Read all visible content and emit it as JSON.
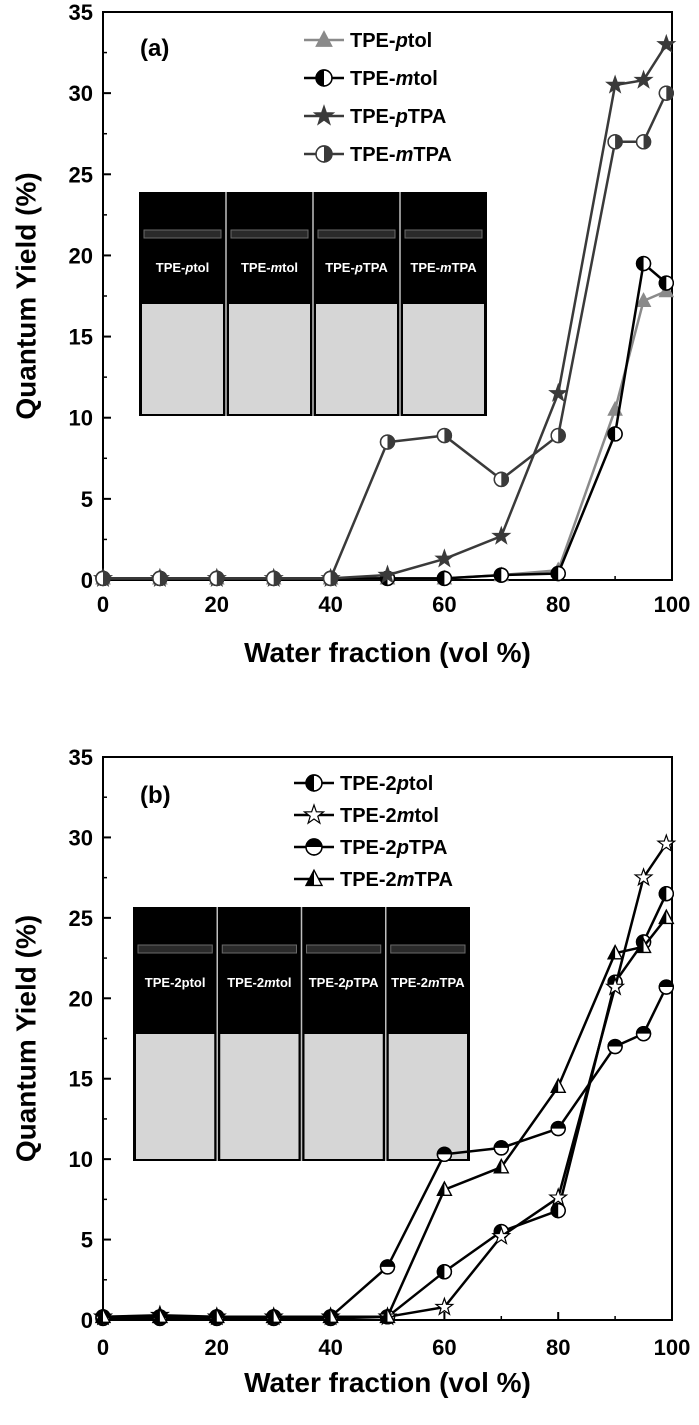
{
  "chart_data": [
    {
      "type": "line",
      "panel_label": "(a)",
      "xlabel": "Water fraction (vol %)",
      "ylabel": "Quantum Yield (%)",
      "xlim": [
        0,
        100
      ],
      "ylim": [
        0,
        35
      ],
      "xticks": [
        "0",
        "20",
        "40",
        "60",
        "80",
        "100"
      ],
      "yticks": [
        "0",
        "5",
        "10",
        "15",
        "20",
        "25",
        "30",
        "35"
      ],
      "legend_position": "top-right",
      "series": [
        {
          "name": "TPE-ptol",
          "name_parts": [
            "TPE-",
            "p",
            "tol"
          ],
          "color": "#8a8a8a",
          "marker": "triangle-up",
          "x": [
            0,
            10,
            20,
            30,
            40,
            50,
            60,
            70,
            80,
            90,
            95,
            99
          ],
          "y": [
            0.1,
            0.1,
            0.1,
            0.1,
            0.1,
            0.1,
            0.1,
            0.3,
            0.6,
            10.5,
            17.2,
            17.8
          ]
        },
        {
          "name": "TPE-mtol",
          "name_parts": [
            "TPE-",
            "m",
            "tol"
          ],
          "color": "#000000",
          "marker": "circle-half-left",
          "x": [
            0,
            10,
            20,
            30,
            40,
            50,
            60,
            70,
            80,
            90,
            95,
            99
          ],
          "y": [
            0.1,
            0.1,
            0.1,
            0.1,
            0.1,
            0.1,
            0.1,
            0.3,
            0.4,
            9.0,
            19.5,
            18.3
          ]
        },
        {
          "name": "TPE-pTPA",
          "name_parts": [
            "TPE-",
            "p",
            "TPA"
          ],
          "color": "#3a3a3a",
          "marker": "star",
          "x": [
            0,
            10,
            20,
            30,
            40,
            50,
            60,
            70,
            80,
            90,
            95,
            99
          ],
          "y": [
            0.1,
            0.1,
            0.1,
            0.1,
            0.1,
            0.3,
            1.3,
            2.7,
            11.5,
            30.5,
            30.8,
            33.0
          ]
        },
        {
          "name": "TPE-mTPA",
          "name_parts": [
            "TPE-",
            "m",
            "TPA"
          ],
          "color": "#3a3a3a",
          "marker": "circle-half-right",
          "x": [
            0,
            10,
            20,
            30,
            40,
            50,
            60,
            70,
            80,
            90,
            95,
            99
          ],
          "y": [
            0.1,
            0.1,
            0.1,
            0.1,
            0.1,
            8.5,
            8.9,
            6.2,
            8.9,
            27.0,
            27.0,
            30.0
          ]
        }
      ],
      "inset": {
        "vials": [
          {
            "label": "TPE-ptol",
            "label_parts": [
              "TPE-",
              "p",
              "tol"
            ]
          },
          {
            "label": "TPE-mtol",
            "label_parts": [
              "TPE-",
              "m",
              "tol"
            ]
          },
          {
            "label": "TPE-pTPA",
            "label_parts": [
              "TPE-",
              "p",
              "TPA"
            ]
          },
          {
            "label": "TPE-mTPA",
            "label_parts": [
              "TPE-",
              "m",
              "TPA"
            ]
          }
        ]
      }
    },
    {
      "type": "line",
      "panel_label": "(b)",
      "xlabel": "Water fraction (vol %)",
      "ylabel": "Quantum Yield (%)",
      "xlim": [
        0,
        100
      ],
      "ylim": [
        0,
        35
      ],
      "xticks": [
        "0",
        "20",
        "40",
        "60",
        "80",
        "100"
      ],
      "yticks": [
        "0",
        "5",
        "10",
        "15",
        "20",
        "25",
        "30",
        "35"
      ],
      "legend_position": "top-right",
      "series": [
        {
          "name": "TPE-2ptol",
          "name_parts": [
            "TPE-2",
            "p",
            "tol"
          ],
          "color": "#000000",
          "marker": "circle-half-left",
          "x": [
            0,
            10,
            20,
            30,
            40,
            50,
            60,
            70,
            80,
            90,
            95,
            99
          ],
          "y": [
            0.1,
            0.1,
            0.1,
            0.1,
            0.1,
            0.2,
            3.0,
            5.5,
            6.8,
            21.0,
            23.5,
            26.5
          ]
        },
        {
          "name": "TPE-2mtol",
          "name_parts": [
            "TPE-2",
            "m",
            "tol"
          ],
          "color": "#000000",
          "marker": "star-open",
          "x": [
            0,
            10,
            20,
            30,
            40,
            50,
            60,
            70,
            80,
            90,
            95,
            99
          ],
          "y": [
            0.2,
            0.3,
            0.2,
            0.2,
            0.2,
            0.2,
            0.8,
            5.2,
            7.6,
            20.7,
            27.5,
            29.6
          ]
        },
        {
          "name": "TPE-2pTPA",
          "name_parts": [
            "TPE-2",
            "p",
            "TPA"
          ],
          "color": "#000000",
          "marker": "circle-half-top",
          "x": [
            0,
            10,
            20,
            30,
            40,
            50,
            60,
            70,
            80,
            90,
            95,
            99
          ],
          "y": [
            0.2,
            0.2,
            0.2,
            0.2,
            0.2,
            3.3,
            10.3,
            10.7,
            11.9,
            17.0,
            17.8,
            20.7
          ]
        },
        {
          "name": "TPE-2mTPA",
          "name_parts": [
            "TPE-2",
            "m",
            "TPA"
          ],
          "color": "#000000",
          "marker": "triangle-half",
          "x": [
            0,
            10,
            20,
            30,
            40,
            50,
            60,
            70,
            80,
            90,
            95,
            99
          ],
          "y": [
            0.2,
            0.2,
            0.2,
            0.2,
            0.2,
            0.2,
            8.1,
            9.5,
            14.5,
            22.8,
            23.2,
            25.0
          ]
        }
      ],
      "inset": {
        "vials": [
          {
            "label": "TPE-2ptol",
            "label_parts": [
              "TPE-2ptol",
              "",
              ""
            ]
          },
          {
            "label": "TPE-2mtol",
            "label_parts": [
              "TPE-2",
              "m",
              "tol"
            ]
          },
          {
            "label": "TPE-2pTPA",
            "label_parts": [
              "TPE-2",
              "p",
              "TPA"
            ]
          },
          {
            "label": "TPE-2mTPA",
            "label_parts": [
              "TPE-2",
              "m",
              "TPA"
            ]
          }
        ]
      }
    }
  ]
}
